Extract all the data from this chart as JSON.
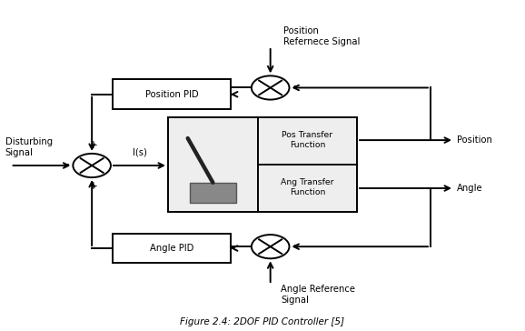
{
  "fig_width": 5.78,
  "fig_height": 3.64,
  "dpi": 100,
  "bg_color": "#ffffff",
  "box_color": "#000000",
  "box_fill": "#ffffff",
  "arrow_color": "#000000",
  "text_color": "#000000",
  "title": "Figure 2.4: 2DOF PID Controller [5]",
  "pos_pid_label": "Position PID",
  "angle_pid_label": "Angle PID",
  "disturbing_label": "Disturbing\nSignal",
  "is_label": "I(s)",
  "position_label": "Position",
  "angle_label": "Angle",
  "pos_ref_label": "Position\nRefernece Signal",
  "angle_ref_label": "Angle Reference\nSignal",
  "pos_tf_label": "Pos Transfer\nFunction",
  "ang_tf_label": "Ang Transfer\nFunction"
}
